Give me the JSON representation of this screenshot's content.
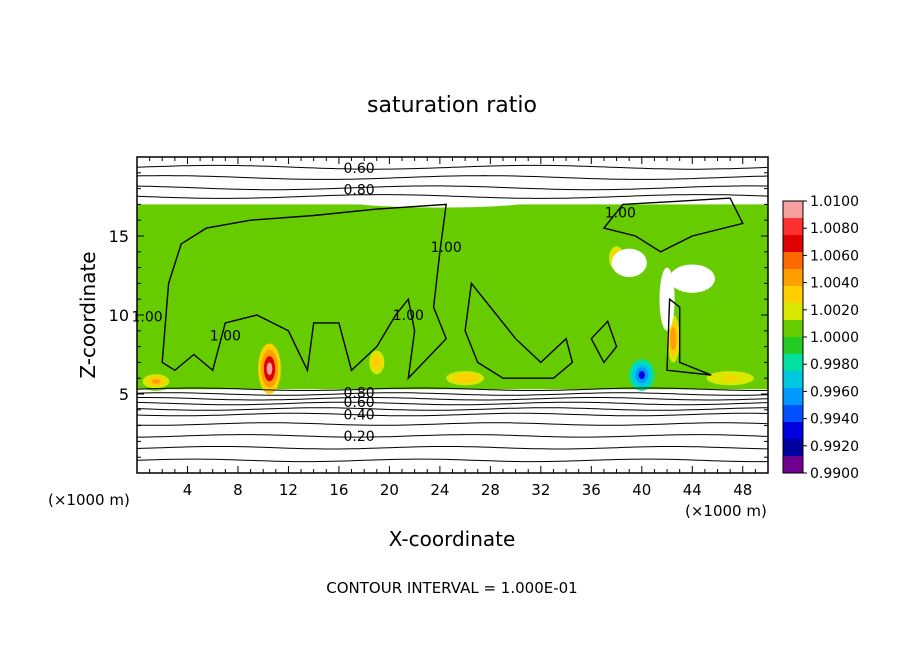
{
  "chart_data": {
    "type": "heatmap",
    "title": "saturation ratio",
    "xlabel": "X-coordinate",
    "ylabel": "Z-coordinate",
    "x_unit_note": "(×1000 m)",
    "xlim": [
      0,
      50
    ],
    "ylim": [
      0,
      20
    ],
    "xticks": [
      4,
      8,
      12,
      16,
      20,
      24,
      28,
      32,
      36,
      40,
      44,
      48
    ],
    "yticks": [
      5,
      10,
      15
    ],
    "footer": "CONTOUR INTERVAL = 1.000E-01",
    "colorbar": {
      "min": 0.99,
      "max": 1.01,
      "tick_labels": [
        "1.0100",
        "1.0080",
        "1.0060",
        "1.0040",
        "1.0020",
        "1.0000",
        "0.9980",
        "0.9960",
        "0.9940",
        "0.9920",
        "0.9900"
      ],
      "colors": [
        "#f7a0a0",
        "#ff3030",
        "#e00000",
        "#ff6a00",
        "#ffa000",
        "#ffd000",
        "#d8e800",
        "#66cc00",
        "#22cc22",
        "#00e0a0",
        "#00c8e0",
        "#0099ff",
        "#0050ff",
        "#0000e0",
        "#0000a0",
        "#700090"
      ]
    },
    "contour_labels": [
      {
        "text": "0.60",
        "x": 17.6,
        "y": 19.3
      },
      {
        "text": "0.80",
        "x": 17.6,
        "y": 17.95
      },
      {
        "text": "0.40",
        "x": 17.6,
        "y": 3.7
      },
      {
        "text": "0.20",
        "x": 17.6,
        "y": 2.35
      },
      {
        "text": "0.60",
        "x": 17.6,
        "y": 4.5
      },
      {
        "text": "0.80",
        "x": 17.6,
        "y": 5.1
      },
      {
        "text": "1.00",
        "x": 0.8,
        "y": 9.9
      },
      {
        "text": "1.00",
        "x": 7.0,
        "y": 8.7
      },
      {
        "text": "1.00",
        "x": 24.5,
        "y": 14.3
      },
      {
        "text": "1.00",
        "x": 21.5,
        "y": 10.0
      },
      {
        "text": "1.00",
        "x": 38.3,
        "y": 16.5
      }
    ],
    "field": {
      "background": 1.0003,
      "top_boundary_z": 17.0,
      "bottom_boundary_z": 5.3,
      "anomalies": [
        {
          "x": 10.5,
          "z": 6.6,
          "rx": 0.9,
          "rz": 1.6,
          "value": 1.0095
        },
        {
          "x": 19.0,
          "z": 7.0,
          "rx": 0.8,
          "rz": 1.0,
          "value": 1.0035
        },
        {
          "x": 40.0,
          "z": 6.2,
          "rx": 1.0,
          "rz": 1.0,
          "value": 0.9935
        },
        {
          "x": 38.0,
          "z": 13.6,
          "rx": 0.8,
          "rz": 1.0,
          "value": 1.004
        },
        {
          "x": 42.5,
          "z": 8.5,
          "rx": 0.5,
          "rz": 1.5,
          "value": 1.005
        },
        {
          "x": 1.5,
          "z": 5.8,
          "rx": 1.4,
          "rz": 0.6,
          "value": 1.004
        },
        {
          "x": 26.0,
          "z": 6.0,
          "rx": 2.0,
          "rz": 0.6,
          "value": 1.0035
        },
        {
          "x": 47.0,
          "z": 6.0,
          "rx": 2.5,
          "rz": 0.6,
          "value": 1.003
        },
        {
          "x": 13.0,
          "z": 13.0,
          "rx": 3.0,
          "rz": 2.5,
          "value": 1.0012
        },
        {
          "x": 30.0,
          "z": 12.0,
          "rx": 3.0,
          "rz": 3.0,
          "value": 1.001
        }
      ],
      "clear_regions": [
        {
          "x": 39.0,
          "z": 13.3,
          "rx": 1.4,
          "rz": 0.9
        },
        {
          "x": 44.0,
          "z": 12.3,
          "rx": 1.8,
          "rz": 0.9
        },
        {
          "x": 42.0,
          "z": 11.0,
          "rx": 0.6,
          "rz": 2.0
        },
        {
          "x": 24.0,
          "z": 17.3,
          "rx": 8.0,
          "rz": 0.5
        },
        {
          "x": 46.0,
          "z": 17.8,
          "rx": 4.0,
          "rz": 0.7
        }
      ]
    }
  }
}
